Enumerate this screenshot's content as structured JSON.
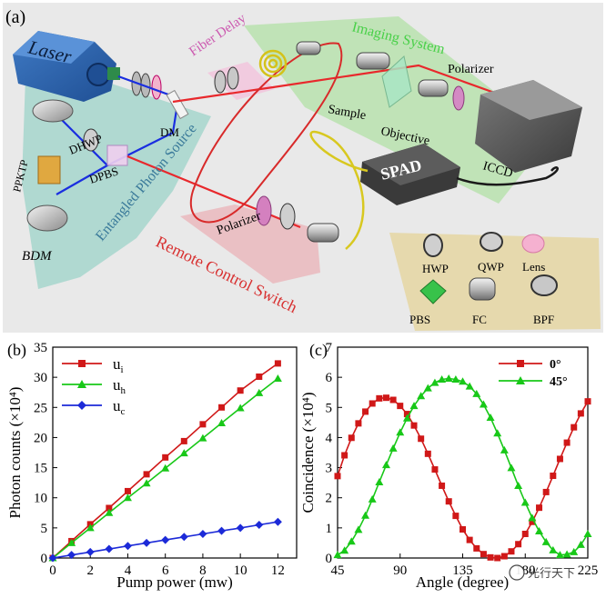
{
  "panel_a": {
    "label": "(a)",
    "components": {
      "laser": "Laser",
      "fiber_delay": "Fiber Delay",
      "imaging_system": "Imaging System",
      "polarizer_top": "Polarizer",
      "sample": "Sample",
      "objective": "Objective",
      "iccd": "ICCD",
      "spad": "SPAD",
      "dm": "DM",
      "dhwp": "DHWP",
      "dpbs": "DPBS",
      "ppktp": "PPKTP",
      "bdm": "BDM",
      "entangled_source": "Entangled Photon Source",
      "polarizer_bottom": "Polarizer",
      "remote_switch": "Remote Control Switch"
    },
    "legend": [
      "HWP",
      "QWP",
      "Lens",
      "PBS",
      "FC",
      "BPF"
    ]
  },
  "chart_data": [
    {
      "type": "line",
      "panel_label": "(b)",
      "xlabel": "Pump power (mw)",
      "ylabel": "Photon counts (×10⁴)",
      "xlim": [
        0,
        13
      ],
      "ylim": [
        0,
        35
      ],
      "xticks": [
        0,
        2,
        4,
        6,
        8,
        10,
        12
      ],
      "yticks": [
        0,
        5,
        10,
        15,
        20,
        25,
        30,
        35
      ],
      "legend_position": "top-left",
      "series": [
        {
          "name": "u_i",
          "label_main": "u",
          "label_sub": "i",
          "color": "#d01818",
          "marker": "square",
          "x": [
            0,
            1,
            2,
            3,
            4,
            5,
            6,
            7,
            8,
            9,
            10,
            11,
            12
          ],
          "y": [
            0,
            2.8,
            5.6,
            8.3,
            11.1,
            13.9,
            16.7,
            19.4,
            22.2,
            25.0,
            27.8,
            30.1,
            32.3
          ]
        },
        {
          "name": "u_h",
          "label_main": "u",
          "label_sub": "h",
          "color": "#18c818",
          "marker": "triangle",
          "x": [
            0,
            1,
            2,
            3,
            4,
            5,
            6,
            7,
            8,
            9,
            10,
            11,
            12
          ],
          "y": [
            0,
            2.5,
            5.0,
            7.5,
            10.0,
            12.4,
            14.9,
            17.4,
            19.9,
            22.4,
            24.9,
            27.4,
            29.8
          ]
        },
        {
          "name": "u_c",
          "label_main": "u",
          "label_sub": "c",
          "color": "#1c2ad8",
          "marker": "diamond",
          "x": [
            0,
            1,
            2,
            3,
            4,
            5,
            6,
            7,
            8,
            9,
            10,
            11,
            12
          ],
          "y": [
            0,
            0.5,
            1.0,
            1.5,
            2.0,
            2.5,
            3.0,
            3.5,
            4.0,
            4.5,
            5.0,
            5.5,
            6.0
          ]
        }
      ]
    },
    {
      "type": "line",
      "panel_label": "(c)",
      "xlabel": "Angle (degree)",
      "ylabel": "Coincidence (×10⁴)",
      "xlim": [
        45,
        225
      ],
      "ylim": [
        0,
        7
      ],
      "xticks": [
        45,
        90,
        135,
        180,
        225
      ],
      "yticks": [
        0,
        1,
        2,
        3,
        4,
        5,
        6,
        7
      ],
      "legend_position": "top-right",
      "series": [
        {
          "name": "0°",
          "color": "#d01818",
          "marker": "square",
          "x": [
            45,
            50,
            55,
            60,
            65,
            70,
            75,
            80,
            85,
            90,
            95,
            100,
            105,
            110,
            115,
            120,
            125,
            130,
            135,
            140,
            145,
            150,
            155,
            160,
            165,
            170,
            175,
            180,
            185,
            190,
            195,
            200,
            205,
            210,
            215,
            220,
            225
          ],
          "y": [
            2.72,
            3.41,
            3.99,
            4.47,
            4.86,
            5.13,
            5.3,
            5.32,
            5.25,
            5.05,
            4.78,
            4.4,
            3.96,
            3.46,
            2.94,
            2.4,
            1.88,
            1.4,
            0.95,
            0.6,
            0.32,
            0.13,
            0.02,
            0.0,
            0.06,
            0.22,
            0.46,
            0.8,
            1.2,
            1.67,
            2.19,
            2.73,
            3.29,
            3.83,
            4.34,
            4.8,
            5.2
          ]
        },
        {
          "name": "45°",
          "color": "#18c818",
          "marker": "triangle",
          "x": [
            45,
            50,
            55,
            60,
            65,
            70,
            75,
            80,
            85,
            90,
            95,
            100,
            105,
            110,
            115,
            120,
            125,
            130,
            135,
            140,
            145,
            150,
            155,
            160,
            165,
            170,
            175,
            180,
            185,
            190,
            195,
            200,
            205,
            210,
            215,
            220,
            225
          ],
          "y": [
            0.1,
            0.25,
            0.55,
            0.94,
            1.41,
            1.95,
            2.52,
            3.09,
            3.64,
            4.17,
            4.64,
            5.05,
            5.38,
            5.64,
            5.82,
            5.93,
            5.96,
            5.93,
            5.86,
            5.7,
            5.45,
            5.1,
            4.66,
            4.14,
            3.58,
            2.99,
            2.4,
            1.84,
            1.33,
            0.89,
            0.53,
            0.26,
            0.1,
            0.12,
            0.2,
            0.44,
            0.8
          ]
        }
      ]
    }
  ],
  "watermark": "光行天下"
}
